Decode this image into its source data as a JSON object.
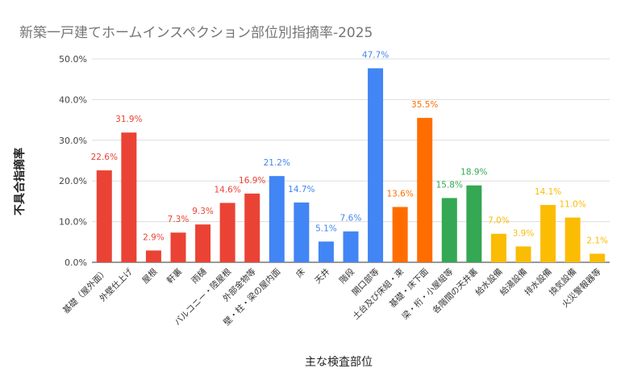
{
  "chart_data": {
    "type": "bar",
    "title": "新築一戸建てホームインスペクション部位別指摘率-2025",
    "xlabel": "主な検査部位",
    "ylabel": "不具合指摘率",
    "ylim": [
      0,
      50
    ],
    "yticks": [
      "0.0%",
      "10.0%",
      "20.0%",
      "30.0%",
      "40.0%",
      "50.0%"
    ],
    "grid": true,
    "categories": [
      "基礎（屋外面）",
      "外壁仕上げ",
      "屋根",
      "軒裏",
      "雨樋",
      "バルコニー・陸屋根",
      "外部金物等",
      "壁・柱・梁の屋内面",
      "床",
      "天井",
      "階段",
      "開口部等",
      "土台及び床組・束",
      "基礎・床下面",
      "梁・桁・小屋組等",
      "各階間の天井裏",
      "給水設備",
      "給湯設備",
      "排水設備",
      "換気設備",
      "火災警報器等"
    ],
    "values": [
      22.6,
      31.9,
      2.9,
      7.3,
      9.3,
      14.6,
      16.9,
      21.2,
      14.7,
      5.1,
      7.6,
      47.7,
      13.6,
      35.5,
      15.8,
      18.9,
      7.0,
      3.9,
      14.1,
      11.0,
      2.1
    ],
    "data_labels": [
      "22.6%",
      "31.9%",
      "2.9%",
      "7.3%",
      "9.3%",
      "14.6%",
      "16.9%",
      "21.2%",
      "14.7%",
      "5.1%",
      "7.6%",
      "47.7%",
      "13.6%",
      "35.5%",
      "15.8%",
      "18.9%",
      "7.0%",
      "3.9%",
      "14.1%",
      "11.0%",
      "2.1%"
    ],
    "colors": [
      "#EA4335",
      "#EA4335",
      "#EA4335",
      "#EA4335",
      "#EA4335",
      "#EA4335",
      "#EA4335",
      "#4285F4",
      "#4285F4",
      "#4285F4",
      "#4285F4",
      "#4285F4",
      "#FF6D01",
      "#FF6D01",
      "#34A853",
      "#34A853",
      "#FBBC04",
      "#FBBC04",
      "#FBBC04",
      "#FBBC04",
      "#FBBC04"
    ]
  }
}
